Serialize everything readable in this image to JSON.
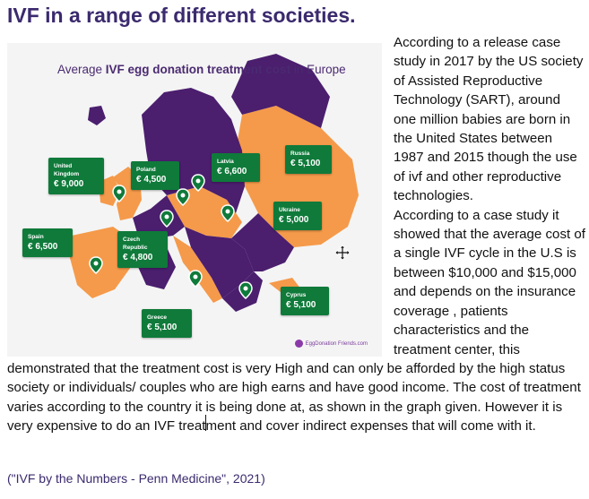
{
  "document": {
    "title": "IVF in a range of different societies.",
    "paragraph_1": "According to a release case study in 2017 by the US society of Assisted Reproductive Technology (SART), around one million babies are born in the United States between 1987 and 2015 though the use of ivf and other reproductive technologies.",
    "paragraph_2": "According to a case study it showed that the average cost of a single IVF cycle in the U.S is between $10,000 and $15,000 and depends on the insurance coverage , patients characteristics and the treatment center, this demonstrated that the treatment cost is very High and can only be afforded by the high status society or individuals/ couples who are high earns and have good income. The cost of treatment varies according to the country it is being done at, as shown in the graph given. However it is very expensive to do an IVF treatment and cover indirect expenses that will come with it.",
    "citation": "(\"IVF by the Numbers - Penn Medicine\", 2021)"
  },
  "map_image": {
    "title_prefix": "Average ",
    "title_emphasis": "IVF egg donation treatment cost",
    "title_suffix": " in Europe",
    "watermark": "EggDonation Friends.com",
    "colors": {
      "purple": "#4b1e6e",
      "orange": "#f59a4a",
      "card_green": "#0f7a3a",
      "background": "#f4f4f4"
    },
    "cards": [
      {
        "country": "United Kingdom",
        "price": "€ 9,000"
      },
      {
        "country": "Poland",
        "price": "€ 4,500"
      },
      {
        "country": "Latvia",
        "price": "€ 6,600"
      },
      {
        "country": "Russia",
        "price": "€ 5,100"
      },
      {
        "country": "Ukraine",
        "price": "€ 5,000"
      },
      {
        "country": "Spain",
        "price": "€ 6,500"
      },
      {
        "country": "Czech Republic",
        "price": "€ 4,800"
      },
      {
        "country": "Cyprus",
        "price": "€ 5,100"
      },
      {
        "country": "Greece",
        "price": "€ 5,100"
      }
    ]
  },
  "icons": {
    "cursor": "move-cursor-icon",
    "pin": "map-pin-icon"
  }
}
